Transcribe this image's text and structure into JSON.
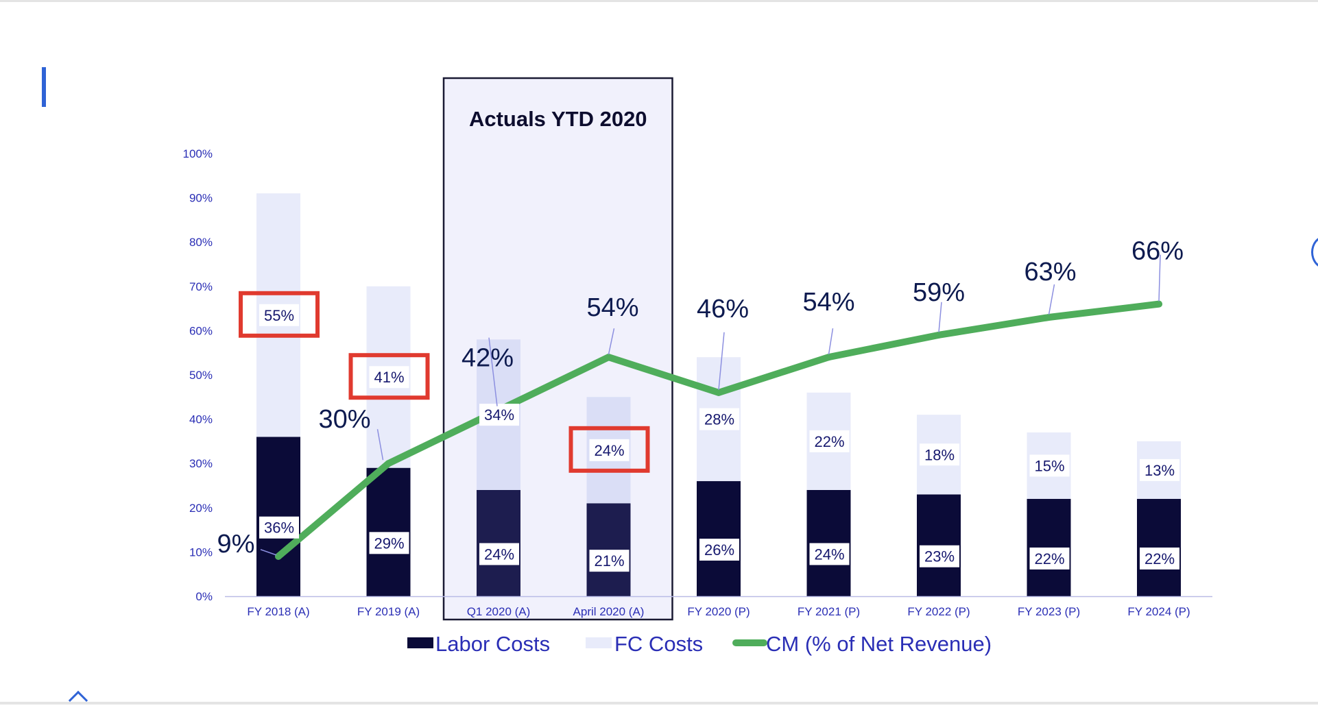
{
  "chart_data": {
    "type": "bar",
    "stacked": true,
    "categories": [
      "FY 2018 (A)",
      "FY 2019 (A)",
      "Q1 2020 (A)",
      "April 2020 (A)",
      "FY 2020 (P)",
      "FY 2021 (P)",
      "FY 2022 (P)",
      "FY 2023 (P)",
      "FY 2024 (P)"
    ],
    "y_ticks": [
      "0%",
      "10%",
      "20%",
      "30%",
      "40%",
      "50%",
      "60%",
      "70%",
      "80%",
      "90%",
      "100%"
    ],
    "ylim": [
      0,
      100
    ],
    "series": [
      {
        "name": "Labor Costs",
        "kind": "bar",
        "color": "#0b0b38",
        "highlight_color": "#1d1d4f",
        "values": [
          36,
          29,
          24,
          21,
          26,
          24,
          23,
          22,
          22
        ],
        "labels": [
          "36%",
          "29%",
          "24%",
          "21%",
          "26%",
          "24%",
          "23%",
          "22%",
          "22%"
        ]
      },
      {
        "name": "FC Costs",
        "kind": "bar",
        "color": "#e8ebfa",
        "highlight_color": "#dadef6",
        "values": [
          55,
          41,
          34,
          24,
          28,
          22,
          18,
          15,
          13
        ],
        "labels": [
          "55%",
          "41%",
          "34%",
          "24%",
          "28%",
          "22%",
          "18%",
          "15%",
          "13%"
        ]
      },
      {
        "name": "CM (% of Net Revenue)",
        "kind": "line",
        "color": "#4fad5b",
        "values": [
          9,
          30,
          42,
          54,
          46,
          54,
          59,
          63,
          66
        ],
        "labels": [
          "9%",
          "30%",
          "42%",
          "54%",
          "46%",
          "54%",
          "59%",
          "63%",
          "66%"
        ]
      }
    ],
    "highlight_region": {
      "label": "Actuals YTD 2020",
      "categories": [
        "Q1 2020 (A)",
        "April 2020 (A)"
      ],
      "fill": "#f1f1fc",
      "border": "#1a1a33"
    },
    "red_boxed_labels": [
      {
        "series": "FC Costs",
        "category": "FY 2018 (A)"
      },
      {
        "series": "FC Costs",
        "category": "FY 2019 (A)"
      },
      {
        "series": "FC Costs",
        "category": "April 2020 (A)"
      }
    ],
    "red_box_color": "#e03a2f",
    "axis_label_color": "#2a2eb5",
    "cm_label_color": "#0d1a4f",
    "legend_placement": "bottom",
    "grid": false
  }
}
